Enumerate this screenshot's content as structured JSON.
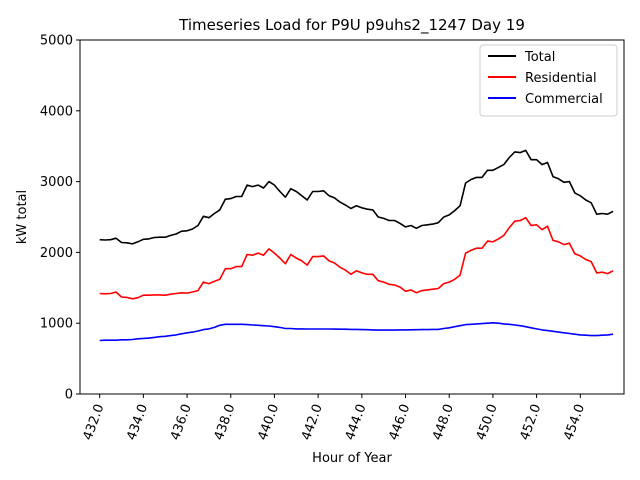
{
  "chart_data": {
    "type": "line",
    "title": "Timeseries Load for P9U p9uhs2_1247  Day 19",
    "xlabel": "Hour of Year",
    "ylabel": "kW total",
    "xlim": [
      431.1,
      456.0
    ],
    "ylim": [
      0,
      5000
    ],
    "xticks": [
      432,
      434,
      436,
      438,
      440,
      442,
      444,
      446,
      448,
      450,
      452,
      454
    ],
    "xtick_labels": [
      "432.0",
      "434.0",
      "436.0",
      "438.0",
      "440.0",
      "442.0",
      "444.0",
      "446.0",
      "448.0",
      "450.0",
      "452.0",
      "454.0"
    ],
    "yticks": [
      0,
      1000,
      2000,
      3000,
      4000,
      5000
    ],
    "ytick_labels": [
      "0",
      "1000",
      "2000",
      "3000",
      "4000",
      "5000"
    ],
    "legend_position": "top-right",
    "grid": false,
    "x": [
      432.0,
      432.25,
      432.5,
      432.75,
      433.0,
      433.25,
      433.5,
      433.75,
      434.0,
      434.25,
      434.5,
      434.75,
      435.0,
      435.25,
      435.5,
      435.75,
      436.0,
      436.25,
      436.5,
      436.75,
      437.0,
      437.25,
      437.5,
      437.75,
      438.0,
      438.25,
      438.5,
      438.75,
      439.0,
      439.25,
      439.5,
      439.75,
      440.0,
      440.25,
      440.5,
      440.75,
      441.0,
      441.25,
      441.5,
      441.75,
      442.0,
      442.25,
      442.5,
      442.75,
      443.0,
      443.25,
      443.5,
      443.75,
      444.0,
      444.25,
      444.5,
      444.75,
      445.0,
      445.25,
      445.5,
      445.75,
      446.0,
      446.25,
      446.5,
      446.75,
      447.0,
      447.25,
      447.5,
      447.75,
      448.0,
      448.25,
      448.5,
      448.75,
      449.0,
      449.25,
      449.5,
      449.75,
      450.0,
      450.25,
      450.5,
      450.75,
      451.0,
      451.25,
      451.5,
      451.75,
      452.0,
      452.25,
      452.5,
      452.75,
      453.0,
      453.25,
      453.5,
      453.75,
      454.0,
      454.25,
      454.5,
      454.75,
      455.0,
      455.25,
      455.5
    ],
    "series": [
      {
        "name": "Total",
        "color": "#000000",
        "values": [
          2180,
          2175,
          2180,
          2200,
          2140,
          2135,
          2120,
          2150,
          2185,
          2190,
          2210,
          2215,
          2215,
          2240,
          2260,
          2300,
          2305,
          2330,
          2380,
          2510,
          2490,
          2550,
          2600,
          2750,
          2760,
          2790,
          2790,
          2950,
          2930,
          2950,
          2910,
          3000,
          2950,
          2860,
          2780,
          2900,
          2860,
          2800,
          2740,
          2860,
          2860,
          2870,
          2800,
          2770,
          2710,
          2670,
          2620,
          2660,
          2630,
          2610,
          2600,
          2500,
          2480,
          2450,
          2450,
          2410,
          2360,
          2380,
          2340,
          2380,
          2390,
          2400,
          2420,
          2500,
          2530,
          2590,
          2660,
          2980,
          3030,
          3060,
          3060,
          3160,
          3160,
          3200,
          3240,
          3340,
          3420,
          3410,
          3440,
          3310,
          3310,
          3240,
          3270,
          3070,
          3040,
          2990,
          3000,
          2840,
          2800,
          2740,
          2700,
          2540,
          2550,
          2540,
          2580
        ]
      },
      {
        "name": "Residential",
        "color": "#ff0000",
        "values": [
          1420,
          1415,
          1420,
          1440,
          1370,
          1365,
          1345,
          1360,
          1395,
          1395,
          1400,
          1400,
          1395,
          1410,
          1420,
          1430,
          1425,
          1440,
          1460,
          1580,
          1560,
          1590,
          1620,
          1770,
          1770,
          1800,
          1800,
          1970,
          1960,
          1990,
          1960,
          2050,
          1990,
          1920,
          1840,
          1970,
          1920,
          1880,
          1820,
          1940,
          1940,
          1950,
          1880,
          1850,
          1790,
          1750,
          1690,
          1740,
          1710,
          1690,
          1690,
          1600,
          1580,
          1550,
          1540,
          1510,
          1450,
          1470,
          1430,
          1460,
          1470,
          1480,
          1490,
          1560,
          1580,
          1620,
          1680,
          1990,
          2030,
          2060,
          2060,
          2160,
          2150,
          2190,
          2240,
          2350,
          2440,
          2450,
          2490,
          2380,
          2390,
          2320,
          2370,
          2170,
          2150,
          2110,
          2130,
          1980,
          1950,
          1900,
          1870,
          1710,
          1720,
          1700,
          1740
        ]
      },
      {
        "name": "Commercial",
        "color": "#0000ff",
        "values": [
          755,
          760,
          760,
          760,
          765,
          765,
          770,
          780,
          785,
          790,
          800,
          810,
          815,
          825,
          835,
          850,
          865,
          875,
          890,
          910,
          920,
          940,
          970,
          985,
          985,
          985,
          985,
          980,
          975,
          970,
          965,
          960,
          950,
          940,
          925,
          925,
          920,
          920,
          918,
          918,
          918,
          918,
          918,
          916,
          915,
          915,
          913,
          912,
          910,
          908,
          905,
          903,
          902,
          902,
          903,
          905,
          905,
          907,
          908,
          910,
          910,
          912,
          913,
          925,
          935,
          950,
          965,
          980,
          985,
          990,
          995,
          1000,
          1005,
          1000,
          990,
          985,
          975,
          965,
          950,
          935,
          920,
          905,
          895,
          885,
          875,
          865,
          855,
          845,
          835,
          830,
          825,
          825,
          830,
          835,
          845
        ]
      }
    ]
  }
}
